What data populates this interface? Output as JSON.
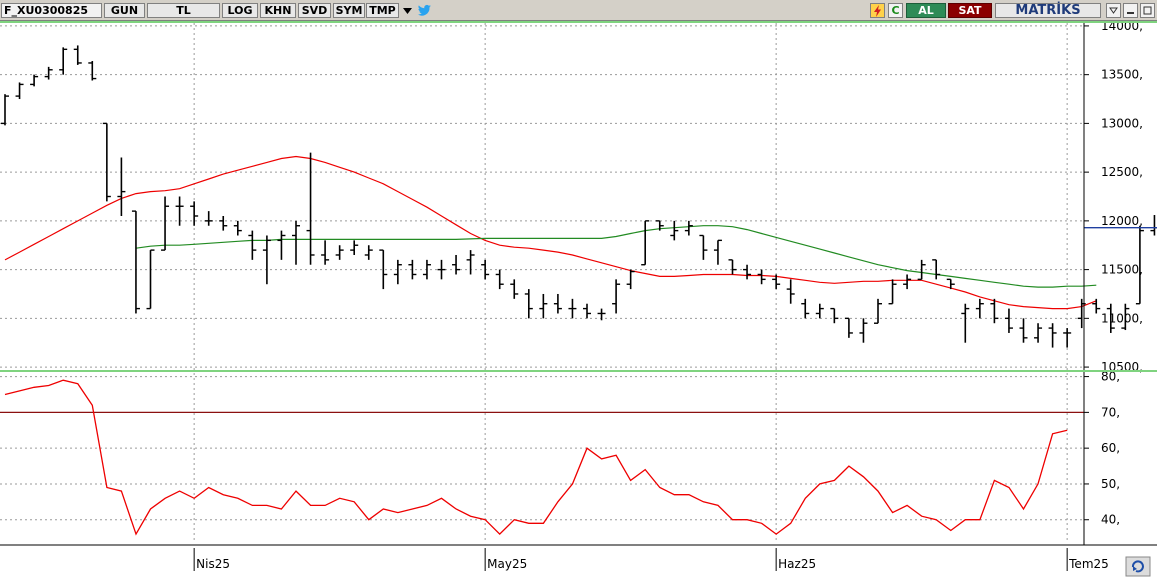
{
  "toolbar": {
    "symbol": "F_XU0300825",
    "period": "GUN",
    "currency": "TL",
    "buttons": [
      "LOG",
      "KHN",
      "SVD",
      "SYM",
      "TMP"
    ],
    "buy_label": "AL",
    "sell_label": "SAT",
    "brand": "MATRİKS",
    "icons": [
      "chevron-down-icon",
      "twitter-bird-icon",
      "lightning-icon",
      "refresh-c-icon",
      "dropdown-icon",
      "minimize-icon",
      "maximize-icon"
    ],
    "colors": {
      "buy": "#2e8b57",
      "sell": "#8b0000",
      "brand": "#1f3b7a"
    }
  },
  "chart_data": [
    {
      "type": "ohlc",
      "price_ticks": [
        "10500,",
        "11000,",
        "11500,",
        "12000,",
        "12500,",
        "13000,",
        "13500,",
        "14000,"
      ],
      "price_range": [
        10470,
        14030
      ],
      "x_labels": [
        {
          "label": "Nis25",
          "index": 13
        },
        {
          "label": "May25",
          "index": 33
        },
        {
          "label": "Haz25",
          "index": 53
        },
        {
          "label": "Tem25",
          "index": 73
        }
      ],
      "last_value": 11930,
      "ohlc": [
        [
          13000,
          13300,
          12980,
          13280
        ],
        [
          13280,
          13420,
          13250,
          13400
        ],
        [
          13400,
          13500,
          13380,
          13480
        ],
        [
          13480,
          13580,
          13450,
          13550
        ],
        [
          13550,
          13780,
          13500,
          13760
        ],
        [
          13760,
          13800,
          13600,
          13620
        ],
        [
          13620,
          13640,
          13440,
          13460
        ],
        [
          13000,
          13000,
          12200,
          12250
        ],
        [
          12250,
          12650,
          12050,
          12300
        ],
        [
          12100,
          12100,
          11050,
          11100
        ],
        [
          11100,
          11700,
          11100,
          11700
        ],
        [
          11700,
          12250,
          11700,
          12150
        ],
        [
          12150,
          12250,
          11950,
          12150
        ],
        [
          12150,
          12200,
          11950,
          12050
        ],
        [
          12000,
          12100,
          11950,
          12000
        ],
        [
          12000,
          12050,
          11900,
          11950
        ],
        [
          11950,
          12000,
          11850,
          11900
        ],
        [
          11850,
          11900,
          11600,
          11700
        ],
        [
          11700,
          11850,
          11350,
          11800
        ],
        [
          11800,
          11900,
          11600,
          11850
        ],
        [
          11850,
          12000,
          11550,
          11950
        ],
        [
          11900,
          12700,
          11550,
          11650
        ],
        [
          11650,
          11800,
          11550,
          11600
        ],
        [
          11650,
          11750,
          11600,
          11700
        ],
        [
          11700,
          11800,
          11650,
          11750
        ],
        [
          11650,
          11750,
          11600,
          11700
        ],
        [
          11700,
          11700,
          11300,
          11450
        ],
        [
          11450,
          11600,
          11350,
          11550
        ],
        [
          11550,
          11600,
          11400,
          11450
        ],
        [
          11450,
          11600,
          11400,
          11550
        ],
        [
          11500,
          11600,
          11400,
          11500
        ],
        [
          11550,
          11650,
          11450,
          11500
        ],
        [
          11600,
          11700,
          11450,
          11650
        ],
        [
          11550,
          11600,
          11400,
          11450
        ],
        [
          11450,
          11500,
          11300,
          11350
        ],
        [
          11350,
          11400,
          11200,
          11250
        ],
        [
          11250,
          11300,
          11000,
          11100
        ],
        [
          11100,
          11250,
          11000,
          11150
        ],
        [
          11150,
          11250,
          11050,
          11100
        ],
        [
          11100,
          11200,
          11000,
          11100
        ],
        [
          11100,
          11150,
          11000,
          11050
        ],
        [
          11050,
          11100,
          10980,
          11050
        ],
        [
          11150,
          11400,
          11050,
          11350
        ],
        [
          11350,
          11500,
          11300,
          11480
        ],
        [
          11550,
          12000,
          11550,
          12000
        ],
        [
          12000,
          12000,
          11900,
          11950
        ],
        [
          11850,
          12000,
          11800,
          11900
        ],
        [
          11900,
          12000,
          11850,
          11950
        ],
        [
          11850,
          11850,
          11600,
          11700
        ],
        [
          11700,
          11800,
          11550,
          11800
        ],
        [
          11600,
          11600,
          11450,
          11500
        ],
        [
          11500,
          11550,
          11400,
          11450
        ],
        [
          11450,
          11500,
          11350,
          11400
        ],
        [
          11400,
          11450,
          11300,
          11350
        ],
        [
          11300,
          11400,
          11150,
          11250
        ],
        [
          11150,
          11200,
          11000,
          11050
        ],
        [
          11050,
          11150,
          11000,
          11100
        ],
        [
          11100,
          11100,
          10950,
          11000
        ],
        [
          11000,
          11000,
          10800,
          10850
        ],
        [
          10850,
          11000,
          10750,
          10950
        ],
        [
          10950,
          11200,
          10950,
          11150
        ],
        [
          11150,
          11400,
          11150,
          11350
        ],
        [
          11350,
          11450,
          11300,
          11400
        ],
        [
          11400,
          11600,
          11400,
          11550
        ],
        [
          11600,
          11600,
          11400,
          11450
        ],
        [
          11400,
          11400,
          11300,
          11350
        ],
        [
          11050,
          11150,
          10750,
          11100
        ],
        [
          11100,
          11200,
          11000,
          11150
        ],
        [
          11150,
          11200,
          10950,
          11000
        ],
        [
          11000,
          11100,
          10850,
          10900
        ],
        [
          10900,
          11000,
          10750,
          10800
        ],
        [
          10800,
          10950,
          10750,
          10900
        ],
        [
          10900,
          10950,
          10700,
          10850
        ],
        [
          10850,
          10900,
          10700,
          10850
        ],
        [
          11000,
          11200,
          10900,
          11150
        ],
        [
          11150,
          11200,
          11050,
          11100
        ],
        [
          11100,
          11150,
          10850,
          10900
        ],
        [
          10900,
          11150,
          10880,
          11100
        ],
        [
          11150,
          11950,
          11150,
          11900
        ],
        [
          11900,
          12060,
          11850,
          11930
        ]
      ],
      "moving_averages": [
        {
          "color": "#ee0000",
          "values": [
            11600,
            11680,
            11760,
            11840,
            11920,
            12000,
            12080,
            12160,
            12230,
            12280,
            12300,
            12310,
            12330,
            12380,
            12430,
            12480,
            12520,
            12560,
            12600,
            12640,
            12660,
            12640,
            12600,
            12550,
            12500,
            12440,
            12380,
            12300,
            12220,
            12140,
            12050,
            11960,
            11870,
            11800,
            11750,
            11730,
            11720,
            11700,
            11680,
            11650,
            11610,
            11570,
            11530,
            11490,
            11460,
            11430,
            11430,
            11440,
            11450,
            11450,
            11450,
            11440,
            11440,
            11430,
            11410,
            11390,
            11370,
            11360,
            11370,
            11380,
            11380,
            11390,
            11390,
            11390,
            11350,
            11310,
            11270,
            11220,
            11180,
            11140,
            11120,
            11110,
            11100,
            11100,
            11120,
            11180
          ]
        },
        {
          "color": "#228b22",
          "start_index": 9,
          "values": [
            11720,
            11740,
            11750,
            11750,
            11760,
            11770,
            11780,
            11790,
            11800,
            11800,
            11810,
            11810,
            11810,
            11810,
            11810,
            11810,
            11810,
            11810,
            11810,
            11810,
            11810,
            11810,
            11810,
            11815,
            11820,
            11820,
            11820,
            11820,
            11820,
            11820,
            11820,
            11820,
            11820,
            11840,
            11870,
            11900,
            11920,
            11930,
            11940,
            11950,
            11950,
            11940,
            11910,
            11870,
            11830,
            11790,
            11750,
            11710,
            11670,
            11630,
            11590,
            11550,
            11520,
            11490,
            11470,
            11450,
            11430,
            11410,
            11390,
            11370,
            11350,
            11330,
            11320,
            11320,
            11330,
            11330,
            11340
          ]
        }
      ]
    },
    {
      "type": "line",
      "y_ticks": [
        "40,",
        "50,",
        "60,",
        "70,",
        "80,"
      ],
      "y_range": [
        33.5,
        81
      ],
      "reference_line": 70,
      "series": [
        {
          "color": "#ee0000",
          "values": [
            75,
            76,
            77,
            77.5,
            79,
            78,
            72,
            49,
            48,
            36,
            43,
            46,
            48,
            46,
            49,
            47,
            46,
            44,
            44,
            43,
            48,
            44,
            44,
            46,
            45,
            40,
            43,
            42,
            43,
            44,
            46,
            43,
            41,
            40,
            36,
            40,
            39,
            39,
            45,
            50,
            60,
            57,
            58,
            51,
            54,
            49,
            47,
            47,
            45,
            44,
            40,
            40,
            39,
            36,
            39,
            46,
            50,
            51,
            55,
            52,
            48,
            42,
            44,
            41,
            40,
            37,
            40,
            40,
            51,
            49,
            43,
            50,
            64,
            65
          ]
        }
      ]
    }
  ]
}
